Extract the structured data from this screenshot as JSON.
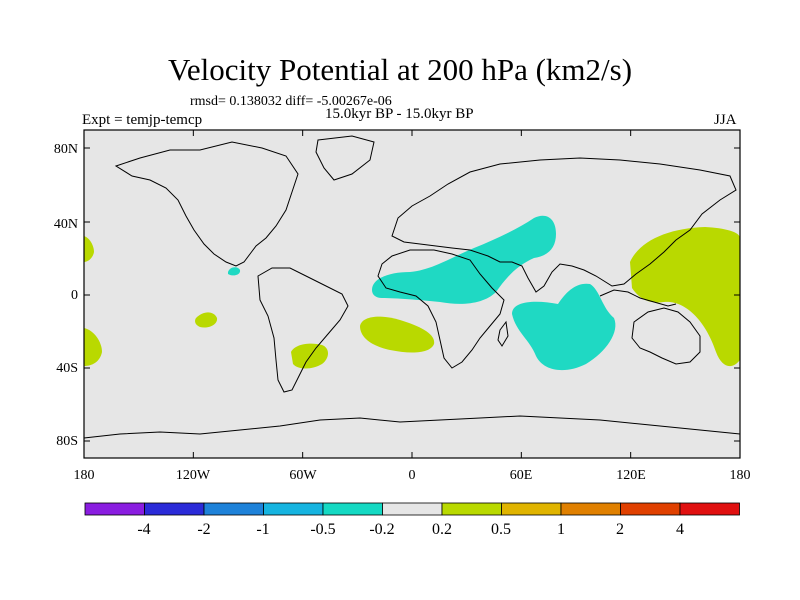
{
  "title": "Velocity Potential at 200 hPa (km2/s)",
  "stats_line": "rmsd= 0.138032 diff= -5.00267e-06",
  "experiment": "Expt = temjp-temcp",
  "period": "15.0kyr BP - 15.0kyr BP",
  "season": "JJA",
  "lat_ticks": [
    "80N",
    "40N",
    "0",
    "40S",
    "80S"
  ],
  "lon_ticks": [
    "180",
    "120W",
    "60W",
    "0",
    "60E",
    "120E",
    "180"
  ],
  "colorbar": {
    "labels": [
      "-4",
      "-2",
      "-1",
      "-0.5",
      "-0.2",
      "0.2",
      "0.5",
      "1",
      "2",
      "4"
    ],
    "colors": [
      "#8a1de0",
      "#2b2bd8",
      "#1e82d9",
      "#16b4e0",
      "#15d9c3",
      "#e6e6e6",
      "#b9d900",
      "#e0b400",
      "#e08000",
      "#e04000",
      "#e01010"
    ]
  },
  "colors": {
    "ocean_bg": "#e6e6e6",
    "negative_fill": "#1fd9c3",
    "positive_fill": "#b9d900"
  }
}
